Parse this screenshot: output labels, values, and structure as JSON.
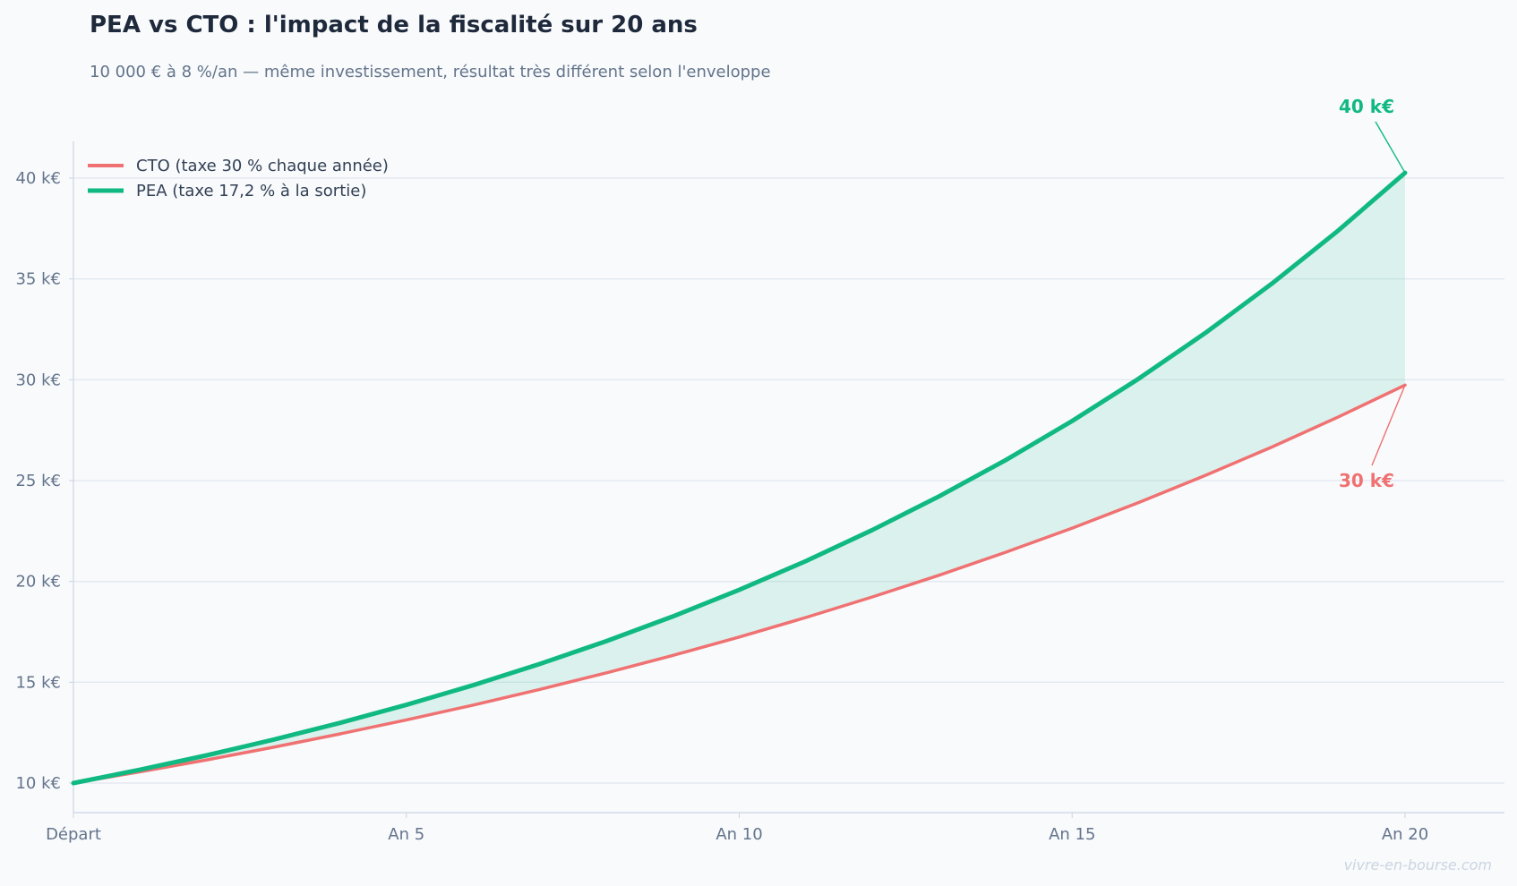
{
  "chart_data": {
    "type": "line",
    "title": "PEA vs CTO : l'impact de la fiscalité sur 20 ans",
    "subtitle": "10 000 € à 8 %/an — même investissement, résultat très différent selon l'enveloppe",
    "xlabel": "",
    "ylabel": "",
    "x": [
      0,
      1,
      2,
      3,
      4,
      5,
      6,
      7,
      8,
      9,
      10,
      11,
      12,
      13,
      14,
      15,
      16,
      17,
      18,
      19,
      20
    ],
    "x_ticks": [
      {
        "value": 0,
        "label": "Départ"
      },
      {
        "value": 5,
        "label": "An 5"
      },
      {
        "value": 10,
        "label": "An 10"
      },
      {
        "value": 15,
        "label": "An 15"
      },
      {
        "value": 20,
        "label": "An 20"
      }
    ],
    "y_ticks": [
      {
        "value": 10000,
        "label": "10 k€"
      },
      {
        "value": 15000,
        "label": "15 k€"
      },
      {
        "value": 20000,
        "label": "20 k€"
      },
      {
        "value": 25000,
        "label": "25 k€"
      },
      {
        "value": 30000,
        "label": "30 k€"
      },
      {
        "value": 35000,
        "label": "35 k€"
      },
      {
        "value": 40000,
        "label": "40 k€"
      }
    ],
    "xlim": [
      0,
      21.5
    ],
    "ylim": [
      8500,
      41800
    ],
    "grid": true,
    "legend_position": "top-left",
    "series": [
      {
        "name": "CTO (taxe 30 % chaque année)",
        "color": "#f07171",
        "values": [
          10000,
          10560,
          11151,
          11776,
          12435,
          13132,
          13867,
          14644,
          15464,
          16330,
          17244,
          18210,
          19230,
          20306,
          21444,
          22645,
          23913,
          25252,
          26666,
          28159,
          29736
        ],
        "end_label": "30 k€"
      },
      {
        "name": "PEA (taxe 17,2 % à la sortie)",
        "color": "#10b981",
        "values": [
          10000,
          10662,
          11377,
          12148,
          12981,
          13880,
          14852,
          15901,
          17034,
          18258,
          19580,
          21008,
          22550,
          24215,
          26014,
          27956,
          30054,
          32320,
          34767,
          37410,
          40264
        ],
        "end_label": "40 k€"
      }
    ],
    "fill_between_color": "#10b981",
    "watermark": "vivre-en-bourse.com"
  }
}
